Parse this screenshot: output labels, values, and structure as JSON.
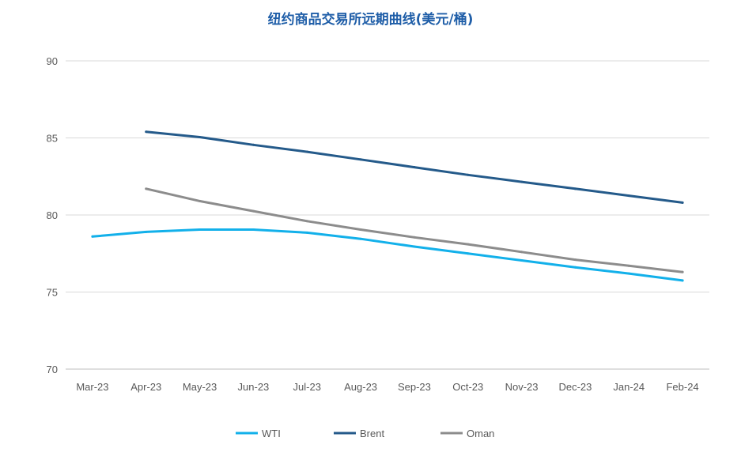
{
  "chart_data": {
    "type": "line",
    "title": "纽约商品交易所远期曲线(美元/桶)",
    "xlabel": "",
    "ylabel": "",
    "ylim": [
      70,
      90
    ],
    "yticks": [
      70,
      75,
      80,
      85,
      90
    ],
    "grid": true,
    "legend_position": "bottom",
    "categories": [
      "Mar-23",
      "Apr-23",
      "May-23",
      "Jun-23",
      "Jul-23",
      "Aug-23",
      "Sep-23",
      "Oct-23",
      "Nov-23",
      "Dec-23",
      "Jan-24",
      "Feb-24"
    ],
    "series": [
      {
        "name": "WTI",
        "color": "#12b0ea",
        "values": [
          78.6,
          78.9,
          79.05,
          79.05,
          78.85,
          78.45,
          77.95,
          77.5,
          77.05,
          76.6,
          76.2,
          75.75
        ]
      },
      {
        "name": "Brent",
        "color": "#245a8a",
        "values": [
          null,
          85.4,
          85.05,
          84.55,
          84.1,
          83.6,
          83.1,
          82.6,
          82.15,
          81.7,
          81.25,
          80.8
        ]
      },
      {
        "name": "Oman",
        "color": "#8c8c8c",
        "values": [
          null,
          81.7,
          80.9,
          80.25,
          79.6,
          79.05,
          78.55,
          78.1,
          77.6,
          77.1,
          76.7,
          76.3
        ]
      }
    ]
  }
}
